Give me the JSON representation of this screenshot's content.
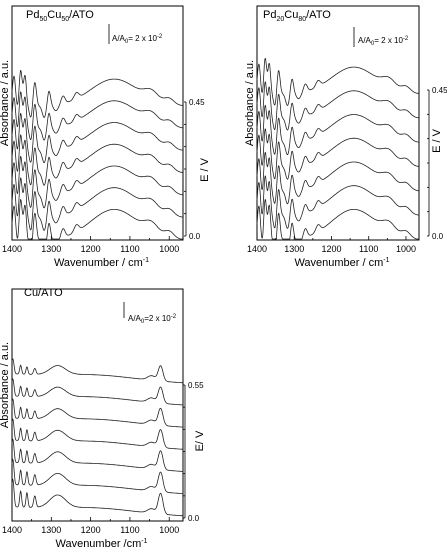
{
  "chart_data": [
    {
      "type": "line",
      "panel_id": "pd50",
      "title": {
        "main": "Pd",
        "s1": "50",
        "mid": "Cu",
        "s2": "50",
        "tail": "/ATO"
      },
      "scale_bar": {
        "main": "A/A",
        "sub": "0",
        "tail": "= 2 x 10",
        "sup": "-2"
      },
      "xlabel": {
        "main": "Wavenumber / cm",
        "sup": "-1"
      },
      "ylabel": "Absorbance / a.u.",
      "side_axis": {
        "label": "E / V",
        "top_value": "0.45",
        "bottom_value": "0.0"
      },
      "xlim": [
        1400,
        965
      ],
      "x_ticks": [
        "1400",
        "1300",
        "1200",
        "1100",
        "1000"
      ],
      "x_tick_values": [
        1400,
        1300,
        1200,
        1100,
        1000
      ],
      "num_spectra": 7,
      "profile": "pd"
    },
    {
      "type": "line",
      "panel_id": "pd20",
      "title": {
        "main": "Pd",
        "s1": "20",
        "mid": "Cu",
        "s2": "80",
        "tail": "/ATO"
      },
      "scale_bar": {
        "main": "A/A",
        "sub": "0",
        "tail": "= 2 x 10",
        "sup": "-2"
      },
      "xlabel": {
        "main": "Wavenumber / cm",
        "sup": "-1"
      },
      "ylabel": "Absorbance / a.u.",
      "side_axis": {
        "label": "E / V",
        "top_value": "0.45",
        "bottom_value": "0.0"
      },
      "xlim": [
        1400,
        965
      ],
      "x_ticks": [
        "1400",
        "1300",
        "1200",
        "1100",
        "1000"
      ],
      "x_tick_values": [
        1400,
        1300,
        1200,
        1100,
        1000
      ],
      "num_spectra": 7,
      "profile": "pd"
    },
    {
      "type": "line",
      "panel_id": "cu",
      "title": {
        "main": "Cu/ATO",
        "s1": "",
        "mid": "",
        "s2": "",
        "tail": ""
      },
      "scale_bar": {
        "main": "A/A",
        "sub": "0",
        "tail": "=2 x 10",
        "sup": "-2"
      },
      "xlabel": {
        "main": "Wavenumber /cm",
        "sup": "-1"
      },
      "ylabel": "Absorbance / a.u.",
      "side_axis": {
        "label": "E/ V",
        "top_value": "0.55",
        "bottom_value": "0.0"
      },
      "xlim": [
        1400,
        965
      ],
      "x_ticks": [
        "1400",
        "1300",
        "1200",
        "1100",
        "1000"
      ],
      "x_tick_values": [
        1400,
        1300,
        1200,
        1100,
        1000
      ],
      "num_spectra": 7,
      "profile": "cu"
    }
  ]
}
